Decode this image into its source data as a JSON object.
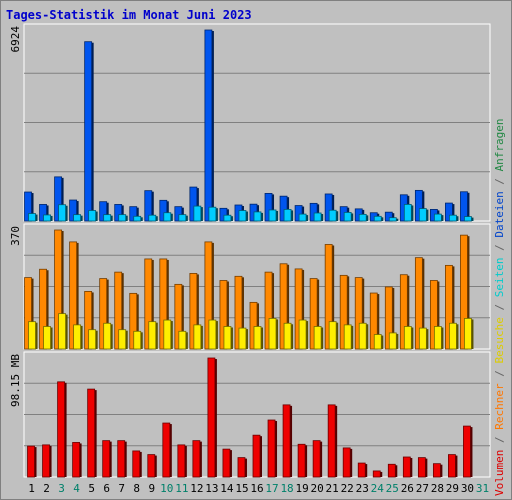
{
  "chart_data": {
    "type": "bar",
    "title": "Tages-Statistik im Monat Juni 2023",
    "categories": [
      "1",
      "2",
      "3",
      "4",
      "5",
      "6",
      "7",
      "8",
      "9",
      "10",
      "11",
      "12",
      "13",
      "14",
      "15",
      "16",
      "17",
      "18",
      "19",
      "20",
      "21",
      "22",
      "23",
      "24",
      "25",
      "26",
      "27",
      "28",
      "29",
      "30",
      "31"
    ],
    "weekend_days": [
      "3",
      "4",
      "10",
      "11",
      "17",
      "18",
      "24",
      "25",
      "31"
    ],
    "panels": [
      {
        "id": "top",
        "axis_label": "6924",
        "ymax": 6924,
        "series": [
          {
            "name": "Anfragen",
            "color": "#0055ee",
            "values": [
              1050,
              600,
              1600,
              760,
              6500,
              700,
              600,
              520,
              1100,
              750,
              520,
              1230,
              6924,
              460,
              580,
              610,
              1000,
              900,
              560,
              640,
              980,
              520,
              440,
              300,
              320,
              950,
              1110,
              420,
              650,
              1060,
              0
            ]
          },
          {
            "name": "Dateien",
            "color": "#00ccff",
            "values": [
              270,
              220,
              590,
              230,
              380,
              230,
              230,
              170,
              210,
              300,
              230,
              540,
              500,
              210,
              380,
              330,
              400,
              420,
              250,
              290,
              390,
              310,
              240,
              170,
              120,
              600,
              450,
              250,
              210,
              160,
              0
            ]
          }
        ]
      },
      {
        "id": "middle",
        "axis_label": "370",
        "ymax": 370,
        "series": [
          {
            "name": "Seiten",
            "color": "#ff8800",
            "values": [
              222,
              248,
              370,
              333,
              179,
              219,
              239,
              173,
              280,
              280,
              201,
              235,
              333,
              213,
              226,
              145,
              239,
              265,
              249,
              219,
              325,
              229,
              222,
              174,
              193,
              231,
              284,
              213,
              260,
              354,
              0
            ]
          },
          {
            "name": "Besuche",
            "color": "#ffee00",
            "values": [
              85,
              70,
              110,
              75,
              60,
              80,
              60,
              55,
              85,
              90,
              55,
              75,
              90,
              70,
              65,
              70,
              95,
              80,
              90,
              70,
              85,
              75,
              80,
              45,
              50,
              70,
              65,
              70,
              80,
              95,
              0
            ]
          }
        ]
      },
      {
        "id": "bottom",
        "axis_label": "98.15 MB",
        "ymax": 98.15,
        "series": [
          {
            "name": "Volumen",
            "color": "#ee0000",
            "values": [
              25.5,
              26.5,
              78.5,
              28.5,
              72.5,
              30,
              30,
              21.5,
              18.5,
              44.5,
              26.5,
              30,
              98.15,
              23,
              16,
              34.5,
              47,
              59.5,
              27,
              30,
              59.5,
              24,
              11.5,
              5,
              10.5,
              16.5,
              16,
              11,
              18.5,
              42,
              0
            ]
          }
        ]
      }
    ],
    "legend_right": [
      {
        "text": "Volumen",
        "color": "#dd0000"
      },
      {
        "text": " / ",
        "color": "#666666"
      },
      {
        "text": "Rechner",
        "color": "#ff7700"
      },
      {
        "text": " / ",
        "color": "#666666"
      },
      {
        "text": "Besuche",
        "color": "#ddcc00"
      },
      {
        "text": " / ",
        "color": "#666666"
      },
      {
        "text": "Seiten",
        "color": "#00cccc"
      },
      {
        "text": " / ",
        "color": "#666666"
      },
      {
        "text": "Dateien",
        "color": "#0044cc"
      },
      {
        "text": " / ",
        "color": "#666666"
      },
      {
        "text": "Anfragen",
        "color": "#228844"
      }
    ],
    "colors": {
      "title": "#0000cc",
      "panel_bg": "#c0c0c0",
      "gridline": "#808080",
      "weekday_label": "#000000",
      "weekend_label": "#00806a"
    }
  }
}
